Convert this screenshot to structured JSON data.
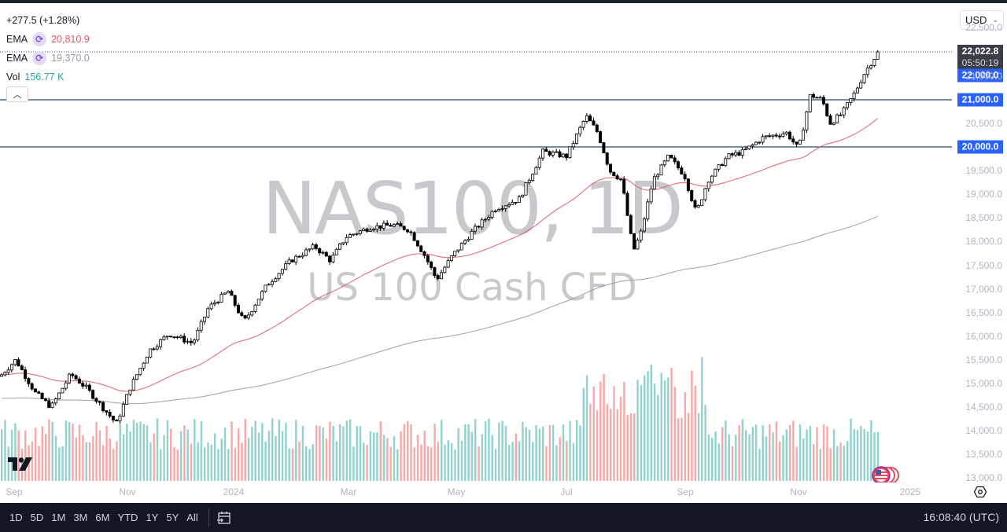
{
  "legend": {
    "change": "+277.5 (+1.28%)",
    "ema1_label": "EMA",
    "ema1_value": "20,810.9",
    "ema2_label": "EMA",
    "ema2_value": "19,370.0",
    "vol_label": "Vol",
    "vol_value": "156.77 K",
    "collapse_icon": "chevron-up-icon"
  },
  "watermark": {
    "symbol": "NAS100, 1D",
    "description": "US 100 Cash CFD"
  },
  "currency_select": {
    "value": "USD"
  },
  "price_scale": {
    "ticks": [
      "22,500.0",
      "21,500.0",
      "20,500.0",
      "19,500.0",
      "19,000.0",
      "18,500.0",
      "18,000.0",
      "17,500.0",
      "17,000.0",
      "16,500.0",
      "16,000.0",
      "15,500.0",
      "15,000.0",
      "14,500.0",
      "14,000.0",
      "13,500.0",
      "13,000.0"
    ],
    "current_price": "22,022.8",
    "countdown": "05:50:19",
    "level_badges": [
      "22,000.0",
      "21,000.0",
      "20,000.0"
    ]
  },
  "time_axis": {
    "labels": [
      "Sep",
      "Nov",
      "2024",
      "Mar",
      "May",
      "Jul",
      "Sep",
      "Nov",
      "2025"
    ]
  },
  "bottom_bar": {
    "ranges": [
      "1D",
      "5D",
      "1M",
      "3M",
      "6M",
      "YTD",
      "1Y",
      "5Y",
      "All"
    ],
    "clock": "16:08:40 (UTC)"
  },
  "colors": {
    "up_volume": "#26a69a",
    "down_volume": "#ef5350",
    "ema_fast": "#e05563",
    "ema_slow": "#9598a1",
    "level_line": "#2a4a6b",
    "level_badge": "#2962ff",
    "candle": "#000000"
  },
  "chart_data": {
    "type": "candlestick",
    "title": "NAS100, 1D — US 100 Cash CFD",
    "symbol": "NAS100",
    "interval": "1D",
    "last_price": 22022.8,
    "change": 277.5,
    "change_pct": 1.28,
    "ylim": [
      13000,
      22700
    ],
    "y_ticks": [
      13000,
      13500,
      14000,
      14500,
      15000,
      15500,
      16000,
      16500,
      17000,
      17500,
      18000,
      18500,
      19000,
      19500,
      20000,
      20500,
      21000,
      21500,
      22000,
      22500
    ],
    "x_labels": [
      "Sep",
      "Nov",
      "2024",
      "Mar",
      "May",
      "Jul",
      "Sep",
      "Nov",
      "2025"
    ],
    "horizontal_levels": [
      22000,
      21000,
      20000
    ],
    "indicators": [
      {
        "name": "EMA (fast)",
        "value": 20810.9,
        "color": "#e05563"
      },
      {
        "name": "EMA (slow)",
        "value": 19370.0,
        "color": "#9598a1"
      },
      {
        "name": "Volume",
        "value": "156.77K"
      }
    ],
    "price_path_monthly_approx": [
      {
        "x": "2023-09",
        "close": 15300
      },
      {
        "x": "2023-10",
        "close": 14700
      },
      {
        "x": "2023-10-end",
        "close": 14100
      },
      {
        "x": "2023-11",
        "close": 15800
      },
      {
        "x": "2023-12",
        "close": 16800
      },
      {
        "x": "2024-01",
        "close": 17500
      },
      {
        "x": "2024-02",
        "close": 18000
      },
      {
        "x": "2024-03",
        "close": 18300
      },
      {
        "x": "2024-04",
        "close": 17100
      },
      {
        "x": "2024-05",
        "close": 18700
      },
      {
        "x": "2024-06",
        "close": 19800
      },
      {
        "x": "2024-07-high",
        "close": 20700
      },
      {
        "x": "2024-08-low",
        "close": 17500
      },
      {
        "x": "2024-08-end",
        "close": 19500
      },
      {
        "x": "2024-09",
        "close": 19900
      },
      {
        "x": "2024-10",
        "close": 20400
      },
      {
        "x": "2024-11",
        "close": 20900
      },
      {
        "x": "2024-12",
        "close": 22022.8
      }
    ]
  }
}
